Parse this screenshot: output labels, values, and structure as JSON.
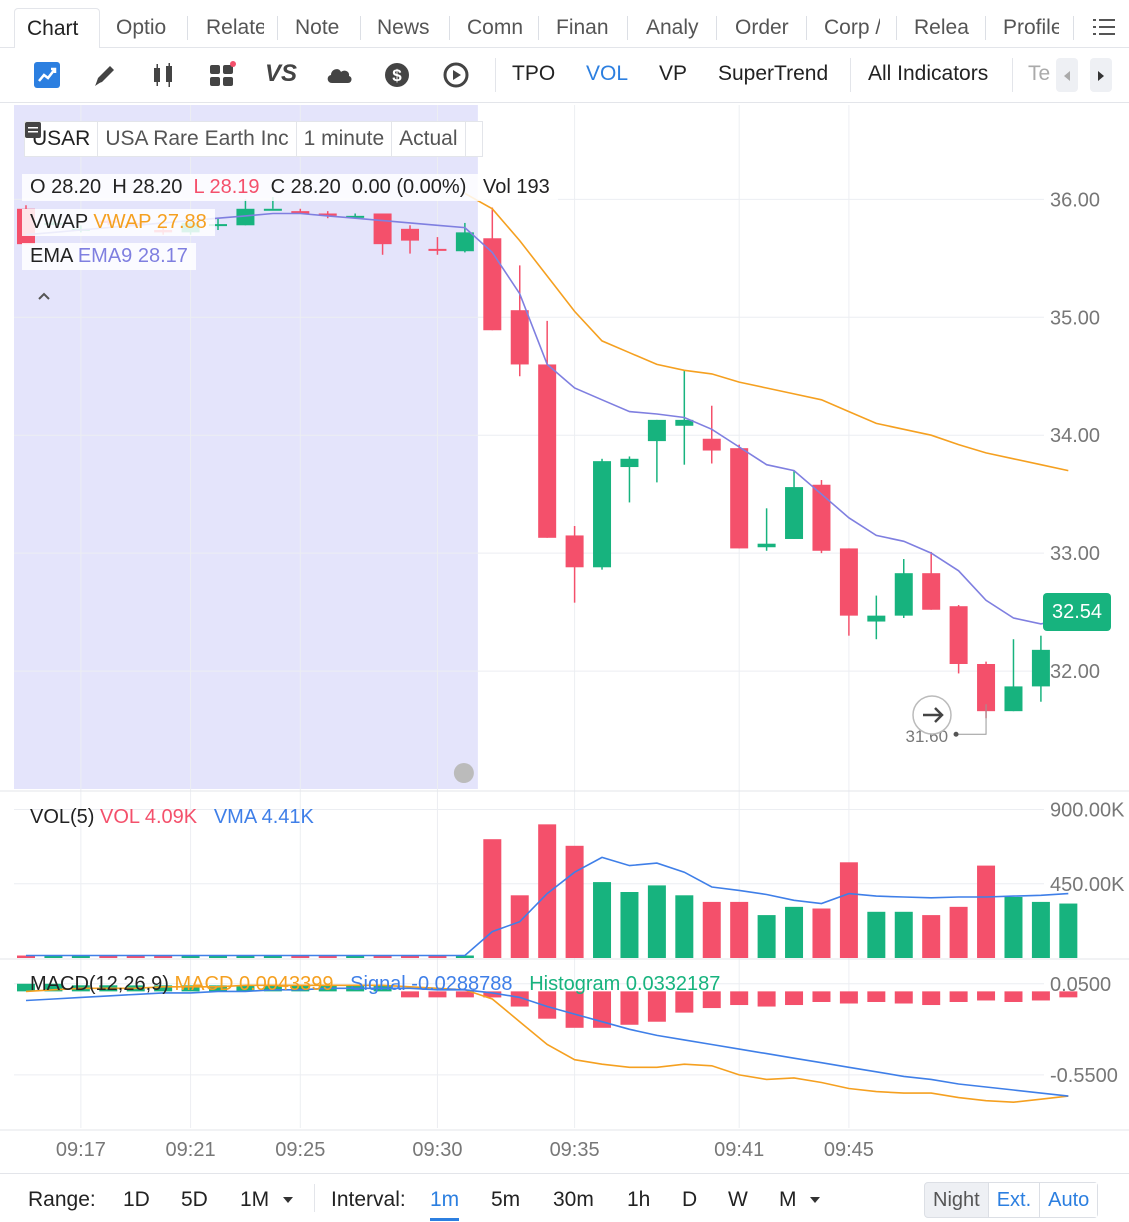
{
  "tabs": [
    "Chart",
    "Optio",
    "Relate",
    "Note",
    "News",
    "Comn",
    "Finan",
    "Analy",
    "Order",
    "Corp /",
    "Relea",
    "Profile"
  ],
  "toolbar": {
    "icons": [
      "trend-chart-icon",
      "pencil-icon",
      "candlestick-icon",
      "widgets-icon",
      "vs-compare-icon",
      "cloud-icon",
      "dollar-icon",
      "replay-icon"
    ],
    "vs_label": "VS",
    "items": [
      "TPO",
      "VOL",
      "VP",
      "SuperTrend",
      "All Indicators",
      "Te"
    ]
  },
  "symbol": {
    "ticker": "USAR",
    "name": "USA Rare Earth Inc",
    "interval": "1 minute",
    "mode": "Actual"
  },
  "ohlc": {
    "o_label": "O",
    "o": "28.20",
    "h_label": "H",
    "h": "28.20",
    "l_label": "L",
    "l": "28.19",
    "c_label": "C",
    "c": "28.20",
    "change": "0.00 (0.00%)",
    "vol_label": "Vol",
    "vol": "193"
  },
  "legend": {
    "vwap_label": "VWAP",
    "vwap_value": "VWAP 27.88",
    "ema_label": "EMA",
    "ema_value": "EMA9 28.17",
    "vol_label": "VOL(5)",
    "vol_value": "VOL 4.09K",
    "vma_value": "VMA 4.41K",
    "macd_label": "MACD(12,26,9)",
    "macd_value": "MACD 0.0043399",
    "signal_value": "Signal -0.0288788",
    "hist_value": "Histogram 0.0332187"
  },
  "price_axis": [
    "36.00",
    "35.00",
    "34.00",
    "33.00",
    "32.00"
  ],
  "vol_axis": [
    "900.00K",
    "450.00K"
  ],
  "macd_axis": [
    "0.0500",
    "-0.5500"
  ],
  "time_axis": [
    "09:17",
    "09:21",
    "09:25",
    "09:30",
    "09:35",
    "09:41",
    "09:45"
  ],
  "last_price": "32.54",
  "low_marker": "31.60",
  "colors": {
    "up": "#17b37e",
    "down": "#f4506b",
    "vwap": "#f5a020",
    "ema": "#7f7fe0",
    "vma": "#3f7fe8",
    "accent": "#2c7fe0",
    "premarket": "#e4e4fb"
  },
  "bottom": {
    "range_label": "Range:",
    "ranges": [
      "1D",
      "5D",
      "1M"
    ],
    "interval_label": "Interval:",
    "intervals": [
      "1m",
      "5m",
      "30m",
      "1h",
      "D",
      "W",
      "M"
    ],
    "session": [
      "Night",
      "Ext.",
      "Auto"
    ]
  },
  "chart_data": {
    "type": "candlestick",
    "candles": [
      {
        "o": 35.92,
        "h": 35.95,
        "l": 35.62,
        "c": 35.62
      },
      {
        "o": 35.8,
        "h": 35.82,
        "l": 35.78,
        "c": 35.8
      },
      {
        "o": 35.74,
        "h": 35.78,
        "l": 35.72,
        "c": 35.75
      },
      {
        "o": 35.82,
        "h": 35.84,
        "l": 35.78,
        "c": 35.8
      },
      {
        "o": 35.8,
        "h": 35.82,
        "l": 35.76,
        "c": 35.78
      },
      {
        "o": 35.74,
        "h": 35.76,
        "l": 35.7,
        "c": 35.72
      },
      {
        "o": 35.72,
        "h": 35.82,
        "l": 35.7,
        "c": 35.8
      },
      {
        "o": 35.78,
        "h": 35.84,
        "l": 35.74,
        "c": 35.79
      },
      {
        "o": 35.78,
        "h": 36.0,
        "l": 35.78,
        "c": 35.92
      },
      {
        "o": 35.92,
        "h": 36.02,
        "l": 35.92,
        "c": 35.92
      },
      {
        "o": 35.9,
        "h": 35.92,
        "l": 35.88,
        "c": 35.88
      },
      {
        "o": 35.88,
        "h": 35.9,
        "l": 35.84,
        "c": 35.86
      },
      {
        "o": 35.86,
        "h": 35.88,
        "l": 35.84,
        "c": 35.86
      },
      {
        "o": 35.88,
        "h": 35.88,
        "l": 35.53,
        "c": 35.62
      },
      {
        "o": 35.75,
        "h": 35.78,
        "l": 35.54,
        "c": 35.65
      },
      {
        "o": 35.58,
        "h": 35.68,
        "l": 35.53,
        "c": 35.57
      },
      {
        "o": 35.56,
        "h": 35.8,
        "l": 35.55,
        "c": 35.72
      },
      {
        "o": 35.67,
        "h": 35.93,
        "l": 34.89,
        "c": 34.89
      },
      {
        "o": 35.06,
        "h": 35.44,
        "l": 34.5,
        "c": 34.6
      },
      {
        "o": 34.6,
        "h": 34.97,
        "l": 33.13,
        "c": 33.13
      },
      {
        "o": 33.15,
        "h": 33.23,
        "l": 32.58,
        "c": 32.88
      },
      {
        "o": 32.88,
        "h": 33.8,
        "l": 32.86,
        "c": 33.78
      },
      {
        "o": 33.73,
        "h": 33.82,
        "l": 33.43,
        "c": 33.8
      },
      {
        "o": 33.95,
        "h": 34.13,
        "l": 33.6,
        "c": 34.13
      },
      {
        "o": 34.08,
        "h": 34.55,
        "l": 33.75,
        "c": 34.13
      },
      {
        "o": 33.97,
        "h": 34.25,
        "l": 33.76,
        "c": 33.87
      },
      {
        "o": 33.89,
        "h": 33.92,
        "l": 33.04,
        "c": 33.04
      },
      {
        "o": 33.05,
        "h": 33.38,
        "l": 33.02,
        "c": 33.08
      },
      {
        "o": 33.12,
        "h": 33.7,
        "l": 33.12,
        "c": 33.56
      },
      {
        "o": 33.58,
        "h": 33.62,
        "l": 33.0,
        "c": 33.02
      },
      {
        "o": 33.04,
        "h": 33.04,
        "l": 32.3,
        "c": 32.47
      },
      {
        "o": 32.42,
        "h": 32.64,
        "l": 32.27,
        "c": 32.47
      },
      {
        "o": 32.47,
        "h": 32.95,
        "l": 32.45,
        "c": 32.83
      },
      {
        "o": 32.83,
        "h": 33.01,
        "l": 32.52,
        "c": 32.52
      },
      {
        "o": 32.55,
        "h": 32.56,
        "l": 31.98,
        "c": 32.06
      },
      {
        "o": 32.06,
        "h": 32.08,
        "l": 31.6,
        "c": 31.66
      },
      {
        "o": 31.66,
        "h": 32.27,
        "l": 31.66,
        "c": 31.87
      },
      {
        "o": 31.87,
        "h": 32.3,
        "l": 31.74,
        "c": 32.18
      },
      {
        "o": 32.4,
        "h": 32.6,
        "l": 32.38,
        "c": 32.54
      }
    ],
    "ylim": [
      31.0,
      36.8
    ],
    "volume": [
      15000,
      15000,
      15000,
      15000,
      15000,
      15000,
      15000,
      15000,
      15000,
      15000,
      15000,
      15000,
      15000,
      15000,
      15000,
      15000,
      15000,
      720000,
      380000,
      810000,
      680000,
      460000,
      400000,
      440000,
      380000,
      340000,
      340000,
      260000,
      310000,
      300000,
      580000,
      280000,
      280000,
      260000,
      310000,
      560000,
      370000,
      340000,
      330000
    ],
    "vma": [
      15000,
      15000,
      15000,
      15000,
      15000,
      15000,
      15000,
      15000,
      15000,
      15000,
      15000,
      15000,
      15000,
      15000,
      15000,
      15000,
      15000,
      160000,
      220000,
      390000,
      520000,
      610000,
      560000,
      575000,
      520000,
      430000,
      410000,
      385000,
      350000,
      330000,
      390000,
      375000,
      370000,
      365000,
      370000,
      370000,
      375000,
      380000,
      390000
    ],
    "vol_ylim": [
      0,
      1000000
    ],
    "macd_hist": [
      0.05,
      0.05,
      0.04,
      0.04,
      0.03,
      0.03,
      0.03,
      0.02,
      0.02,
      0.02,
      0.01,
      0.0,
      0.0,
      0.0,
      -0.02,
      -0.02,
      -0.03,
      -0.04,
      -0.1,
      -0.18,
      -0.24,
      -0.24,
      -0.22,
      -0.2,
      -0.14,
      -0.11,
      -0.09,
      -0.1,
      -0.09,
      -0.07,
      -0.08,
      -0.07,
      -0.08,
      -0.09,
      -0.07,
      -0.06,
      -0.07,
      -0.06,
      -0.03
    ],
    "macd": [
      0.0,
      0.01,
      0.02,
      0.02,
      0.02,
      0.03,
      0.03,
      0.03,
      0.04,
      0.04,
      0.04,
      0.04,
      0.04,
      0.04,
      0.03,
      0.02,
      0.01,
      -0.05,
      -0.2,
      -0.35,
      -0.45,
      -0.48,
      -0.5,
      -0.5,
      -0.48,
      -0.49,
      -0.55,
      -0.58,
      -0.57,
      -0.6,
      -0.64,
      -0.66,
      -0.67,
      -0.67,
      -0.7,
      -0.72,
      -0.73,
      -0.71,
      -0.69
    ],
    "signal": [
      -0.06,
      -0.05,
      -0.04,
      -0.03,
      -0.02,
      -0.01,
      -0.01,
      0.0,
      0.0,
      0.01,
      0.01,
      0.02,
      0.02,
      0.02,
      0.02,
      0.01,
      0.01,
      -0.01,
      -0.04,
      -0.1,
      -0.15,
      -0.2,
      -0.25,
      -0.29,
      -0.32,
      -0.35,
      -0.38,
      -0.41,
      -0.44,
      -0.47,
      -0.5,
      -0.53,
      -0.56,
      -0.58,
      -0.61,
      -0.63,
      -0.65,
      -0.67,
      -0.69
    ],
    "macd_ylim": [
      -0.9,
      0.2
    ],
    "vwap": [
      null,
      null,
      null,
      null,
      null,
      null,
      null,
      null,
      null,
      null,
      null,
      null,
      null,
      null,
      null,
      null,
      36.05,
      35.92,
      35.65,
      35.35,
      35.05,
      34.8,
      34.7,
      34.6,
      34.55,
      34.52,
      34.45,
      34.4,
      34.35,
      34.3,
      34.2,
      34.1,
      34.05,
      34.0,
      33.92,
      33.85,
      33.8,
      33.75,
      33.7
    ],
    "ema9": [
      35.7,
      35.72,
      35.74,
      35.76,
      35.78,
      35.8,
      35.82,
      35.84,
      35.86,
      35.88,
      35.88,
      35.86,
      35.84,
      35.82,
      35.8,
      35.78,
      35.76,
      35.55,
      35.2,
      34.6,
      34.4,
      34.3,
      34.2,
      34.18,
      34.15,
      34.05,
      33.9,
      33.75,
      33.7,
      33.5,
      33.3,
      33.15,
      33.1,
      33.0,
      32.85,
      32.6,
      32.45,
      32.4,
      32.45
    ],
    "premarket_end_index": 16,
    "time_ticks": [
      {
        "label": "09:17",
        "i": 2
      },
      {
        "label": "09:21",
        "i": 6
      },
      {
        "label": "09:25",
        "i": 10
      },
      {
        "label": "09:30",
        "i": 15
      },
      {
        "label": "09:35",
        "i": 20
      },
      {
        "label": "09:41",
        "i": 26
      },
      {
        "label": "09:45",
        "i": 30
      }
    ]
  }
}
